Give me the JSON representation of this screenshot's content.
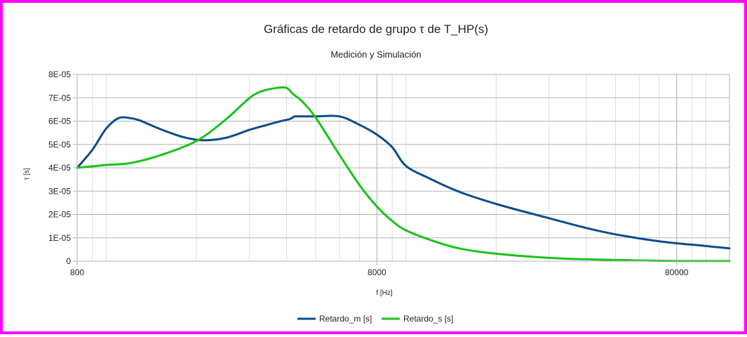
{
  "chart_data": {
    "type": "line",
    "title": "Gráficas de retardo de grupo τ de T_HP(s)",
    "subtitle": "Medición y Simulación",
    "xlabel": "f [Hz]",
    "ylabel": "τ [s]",
    "xscale": "log",
    "xlim": [
      800,
      120000
    ],
    "ylim": [
      0,
      8e-05
    ],
    "x_ticks": [
      800,
      8000,
      80000
    ],
    "x_tick_labels": [
      "800",
      "8000",
      "80000"
    ],
    "y_ticks": [
      0,
      1e-05,
      2e-05,
      3e-05,
      4e-05,
      5e-05,
      6e-05,
      7e-05,
      8e-05
    ],
    "y_tick_labels": [
      "0",
      "1E-05",
      "2E-05",
      "3E-05",
      "4E-05",
      "5E-05",
      "6E-05",
      "7E-05",
      "8E-05"
    ],
    "grid": true,
    "legend_position": "bottom",
    "series": [
      {
        "name": "Retardo_m [s]",
        "color": "#0b4d8c",
        "x": [
          800,
          900,
          1000,
          1100,
          1200,
          1300,
          1500,
          1800,
          2100,
          2500,
          3000,
          3400,
          3800,
          4100,
          4250,
          4400,
          5000,
          6000,
          7000,
          8000,
          9000,
          10000,
          12000,
          15000,
          20000,
          30000,
          40000,
          50000,
          70000,
          100000,
          120000
        ],
        "y": [
          4e-05,
          4.78e-05,
          5.68e-05,
          6.13e-05,
          6.13e-05,
          6.02e-05,
          5.68e-05,
          5.32e-05,
          5.18e-05,
          5.28e-05,
          5.62e-05,
          5.82e-05,
          5.99e-05,
          6.09e-05,
          6.2e-05,
          6.2e-05,
          6.2e-05,
          6.2e-05,
          5.84e-05,
          5.42e-05,
          4.88e-05,
          4.08e-05,
          3.54e-05,
          2.98e-05,
          2.45e-05,
          1.84e-05,
          1.42e-05,
          1.15e-05,
          8.5e-06,
          6.5e-06,
          5.5e-06
        ]
      },
      {
        "name": "Retardo_s [s]",
        "color": "#18c418",
        "x": [
          800,
          1000,
          1200,
          1500,
          2000,
          2500,
          3000,
          3300,
          3700,
          4000,
          4200,
          4500,
          5000,
          6000,
          7000,
          8000,
          9000,
          10000,
          12000,
          15000,
          20000,
          30000,
          40000,
          60000,
          80000,
          120000
        ],
        "y": [
          4e-05,
          4.12e-05,
          4.2e-05,
          4.52e-05,
          5.15e-05,
          6.06e-05,
          6.98e-05,
          7.28e-05,
          7.42e-05,
          7.42e-05,
          7.16e-05,
          6.85e-05,
          6.15e-05,
          4.55e-05,
          3.26e-05,
          2.34e-05,
          1.72e-05,
          1.32e-05,
          9.2e-06,
          5.5e-06,
          3.2e-06,
          1.4e-06,
          8e-07,
          3e-07,
          1e-07,
          1e-07
        ]
      }
    ]
  }
}
